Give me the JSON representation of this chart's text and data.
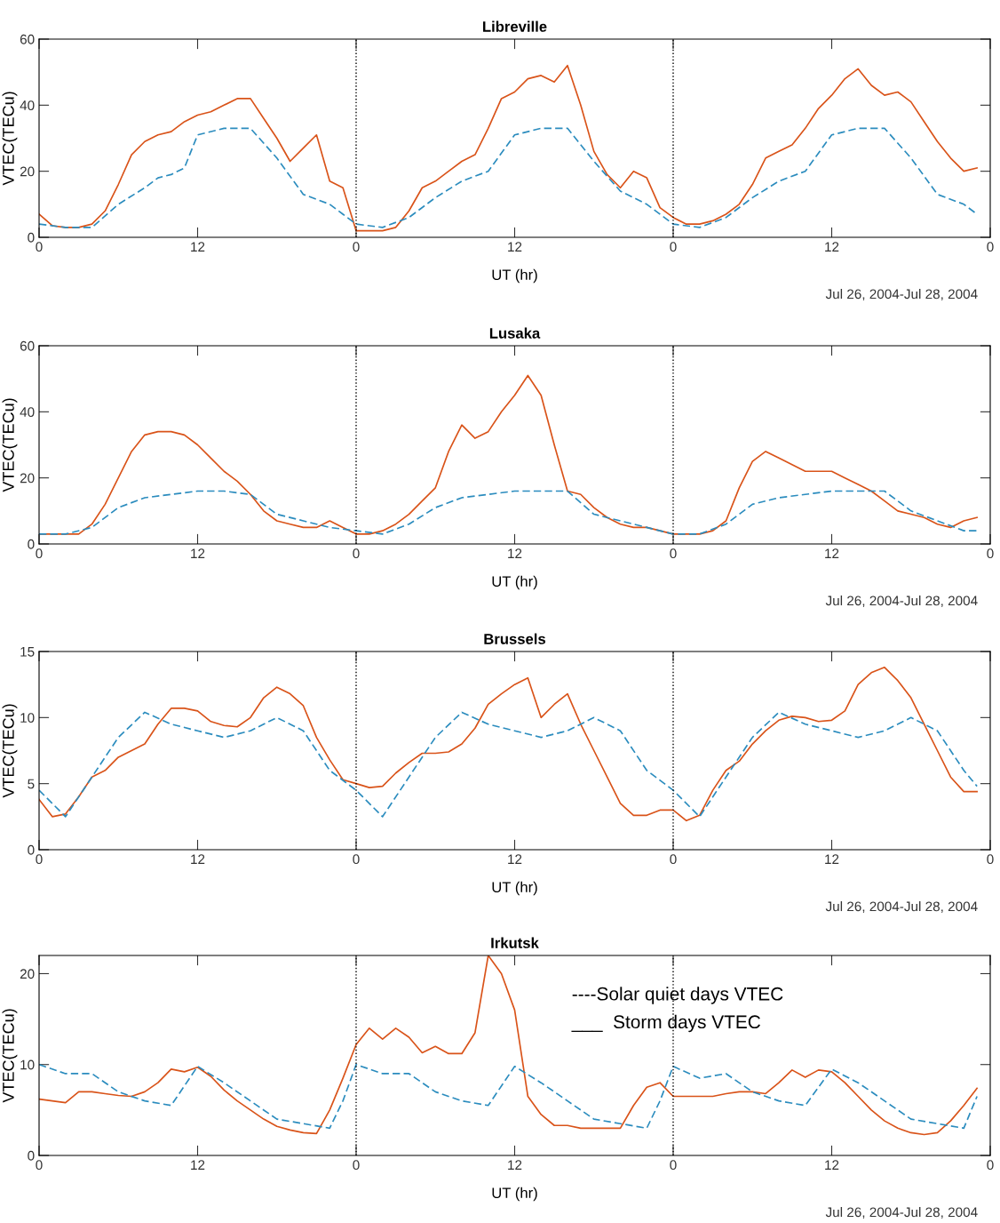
{
  "chart_data": [
    {
      "type": "line",
      "title": "Libreville",
      "xlabel": "UT (hr)",
      "ylabel": "VTEC(TECu)",
      "annotations": [
        "Jul 26, 2004-Jul 28, 2004"
      ],
      "xlim": [
        "2004-07-26T00:00",
        "2004-07-29T00:00"
      ],
      "xticks": [
        {
          "value": "2004-07-26T00:00",
          "label": "0"
        },
        {
          "value": "2004-07-26T12:00",
          "label": "12"
        },
        {
          "value": "2004-07-27T00:00",
          "label": "0"
        },
        {
          "value": "2004-07-27T12:00",
          "label": "12"
        },
        {
          "value": "2004-07-28T00:00",
          "label": "0"
        },
        {
          "value": "2004-07-28T12:00",
          "label": "12"
        },
        {
          "value": "2004-07-29T00:00",
          "label": "0"
        }
      ],
      "ylim": [
        0,
        60
      ],
      "yticks": [
        0,
        20,
        40,
        60
      ],
      "grid": false,
      "ref_lines": [
        {
          "axis": "x",
          "value": "2004-07-27T00:00",
          "color": "#000000",
          "line_style": "dotted"
        },
        {
          "axis": "x",
          "value": "2004-07-28T00:00",
          "color": "#000000",
          "line_style": "dotted"
        }
      ],
      "x": [
        "2004-07-26T00:00",
        "2004-07-26T01:00",
        "2004-07-26T02:00",
        "2004-07-26T03:00",
        "2004-07-26T04:00",
        "2004-07-26T05:00",
        "2004-07-26T06:00",
        "2004-07-26T07:00",
        "2004-07-26T08:00",
        "2004-07-26T09:00",
        "2004-07-26T10:00",
        "2004-07-26T11:00",
        "2004-07-26T12:00",
        "2004-07-26T13:00",
        "2004-07-26T14:00",
        "2004-07-26T15:00",
        "2004-07-26T16:00",
        "2004-07-26T17:00",
        "2004-07-26T18:00",
        "2004-07-26T19:00",
        "2004-07-26T20:00",
        "2004-07-26T21:00",
        "2004-07-26T22:00",
        "2004-07-26T23:00",
        "2004-07-27T00:00",
        "2004-07-27T01:00",
        "2004-07-27T02:00",
        "2004-07-27T03:00",
        "2004-07-27T04:00",
        "2004-07-27T05:00",
        "2004-07-27T06:00",
        "2004-07-27T07:00",
        "2004-07-27T08:00",
        "2004-07-27T09:00",
        "2004-07-27T10:00",
        "2004-07-27T11:00",
        "2004-07-27T12:00",
        "2004-07-27T13:00",
        "2004-07-27T14:00",
        "2004-07-27T15:00",
        "2004-07-27T16:00",
        "2004-07-27T17:00",
        "2004-07-27T18:00",
        "2004-07-27T19:00",
        "2004-07-27T20:00",
        "2004-07-27T21:00",
        "2004-07-27T22:00",
        "2004-07-27T23:00",
        "2004-07-28T00:00",
        "2004-07-28T01:00",
        "2004-07-28T02:00",
        "2004-07-28T03:00",
        "2004-07-28T04:00",
        "2004-07-28T05:00",
        "2004-07-28T06:00",
        "2004-07-28T07:00",
        "2004-07-28T08:00",
        "2004-07-28T09:00",
        "2004-07-28T10:00",
        "2004-07-28T11:00",
        "2004-07-28T12:00",
        "2004-07-28T13:00",
        "2004-07-28T14:00",
        "2004-07-28T15:00",
        "2004-07-28T16:00",
        "2004-07-28T17:00",
        "2004-07-28T18:00",
        "2004-07-28T19:00",
        "2004-07-28T20:00",
        "2004-07-28T21:00",
        "2004-07-28T22:00",
        "2004-07-28T23:00"
      ],
      "series": [
        {
          "color": "#d95319",
          "line_style": "solid",
          "values": [
            7,
            3.5,
            3,
            3,
            4,
            8,
            16,
            25,
            29,
            31,
            32,
            35,
            37,
            38,
            40,
            42,
            42,
            36,
            30,
            23,
            27,
            31,
            17,
            15,
            2,
            2,
            2,
            3,
            8,
            15,
            17,
            20,
            23,
            25,
            33,
            42,
            44,
            48,
            49,
            47,
            52,
            40,
            26,
            19,
            15,
            20,
            18,
            9,
            6,
            4,
            4,
            5,
            7,
            10,
            16,
            24,
            26,
            28,
            33,
            39,
            43,
            48,
            51,
            46,
            43,
            44,
            41,
            35,
            29,
            24,
            20,
            21
          ]
        },
        {
          "color": "#2b8cbe",
          "line_style": "dashed",
          "x": [
            "2004-07-26T00:00",
            "2004-07-26T02:00",
            "2004-07-26T04:00",
            "2004-07-26T06:00",
            "2004-07-26T08:00",
            "2004-07-26T09:00",
            "2004-07-26T10:00",
            "2004-07-26T11:00",
            "2004-07-26T12:00",
            "2004-07-26T14:00",
            "2004-07-26T16:00",
            "2004-07-26T18:00",
            "2004-07-26T20:00",
            "2004-07-26T22:00",
            "2004-07-26T23:00",
            "2004-07-27T00:00",
            "2004-07-27T02:00",
            "2004-07-27T04:00",
            "2004-07-27T06:00",
            "2004-07-27T08:00",
            "2004-07-27T10:00",
            "2004-07-27T12:00",
            "2004-07-27T14:00",
            "2004-07-27T16:00",
            "2004-07-27T18:00",
            "2004-07-27T20:00",
            "2004-07-27T22:00",
            "2004-07-28T00:00",
            "2004-07-28T02:00",
            "2004-07-28T04:00",
            "2004-07-28T06:00",
            "2004-07-28T08:00",
            "2004-07-28T10:00",
            "2004-07-28T12:00",
            "2004-07-28T14:00",
            "2004-07-28T16:00",
            "2004-07-28T18:00",
            "2004-07-28T20:00",
            "2004-07-28T22:00",
            "2004-07-28T23:00"
          ],
          "values": [
            4,
            3,
            3,
            10,
            15,
            18,
            19,
            21,
            31,
            33,
            33,
            24,
            13,
            10,
            7,
            4,
            3,
            6,
            12,
            17,
            20,
            31,
            33,
            33,
            23,
            14,
            10,
            4,
            3,
            6,
            12,
            17,
            20,
            31,
            33,
            33,
            24,
            13,
            10,
            7
          ]
        }
      ]
    },
    {
      "type": "line",
      "title": "Lusaka",
      "xlabel": "UT (hr)",
      "ylabel": "VTEC(TECu)",
      "annotations": [
        "Jul 26, 2004-Jul 28, 2004"
      ],
      "xlim": [
        "2004-07-26T00:00",
        "2004-07-29T00:00"
      ],
      "xticks": [
        {
          "value": "2004-07-26T00:00",
          "label": "0"
        },
        {
          "value": "2004-07-26T12:00",
          "label": "12"
        },
        {
          "value": "2004-07-27T00:00",
          "label": "0"
        },
        {
          "value": "2004-07-27T12:00",
          "label": "12"
        },
        {
          "value": "2004-07-28T00:00",
          "label": "0"
        },
        {
          "value": "2004-07-28T12:00",
          "label": "12"
        },
        {
          "value": "2004-07-29T00:00",
          "label": "0"
        }
      ],
      "ylim": [
        0,
        60
      ],
      "yticks": [
        0,
        20,
        40,
        60
      ],
      "grid": false,
      "ref_lines": [
        {
          "axis": "x",
          "value": "2004-07-27T00:00",
          "color": "#000000",
          "line_style": "dotted"
        },
        {
          "axis": "x",
          "value": "2004-07-28T00:00",
          "color": "#000000",
          "line_style": "dotted"
        }
      ],
      "x": [
        "2004-07-26T00:00",
        "2004-07-26T01:00",
        "2004-07-26T02:00",
        "2004-07-26T03:00",
        "2004-07-26T04:00",
        "2004-07-26T05:00",
        "2004-07-26T06:00",
        "2004-07-26T07:00",
        "2004-07-26T08:00",
        "2004-07-26T09:00",
        "2004-07-26T10:00",
        "2004-07-26T11:00",
        "2004-07-26T12:00",
        "2004-07-26T13:00",
        "2004-07-26T14:00",
        "2004-07-26T15:00",
        "2004-07-26T16:00",
        "2004-07-26T17:00",
        "2004-07-26T18:00",
        "2004-07-26T19:00",
        "2004-07-26T20:00",
        "2004-07-26T21:00",
        "2004-07-26T22:00",
        "2004-07-26T23:00",
        "2004-07-27T00:00",
        "2004-07-27T01:00",
        "2004-07-27T02:00",
        "2004-07-27T03:00",
        "2004-07-27T04:00",
        "2004-07-27T05:00",
        "2004-07-27T06:00",
        "2004-07-27T07:00",
        "2004-07-27T08:00",
        "2004-07-27T09:00",
        "2004-07-27T10:00",
        "2004-07-27T11:00",
        "2004-07-27T12:00",
        "2004-07-27T13:00",
        "2004-07-27T14:00",
        "2004-07-27T15:00",
        "2004-07-27T16:00",
        "2004-07-27T17:00",
        "2004-07-27T18:00",
        "2004-07-27T19:00",
        "2004-07-27T20:00",
        "2004-07-27T21:00",
        "2004-07-27T22:00",
        "2004-07-27T23:00",
        "2004-07-28T00:00",
        "2004-07-28T01:00",
        "2004-07-28T02:00",
        "2004-07-28T03:00",
        "2004-07-28T04:00",
        "2004-07-28T05:00",
        "2004-07-28T06:00",
        "2004-07-28T07:00",
        "2004-07-28T08:00",
        "2004-07-28T09:00",
        "2004-07-28T10:00",
        "2004-07-28T11:00",
        "2004-07-28T12:00",
        "2004-07-28T13:00",
        "2004-07-28T14:00",
        "2004-07-28T15:00",
        "2004-07-28T16:00",
        "2004-07-28T17:00",
        "2004-07-28T18:00",
        "2004-07-28T19:00",
        "2004-07-28T20:00",
        "2004-07-28T21:00",
        "2004-07-28T22:00",
        "2004-07-28T23:00"
      ],
      "series": [
        {
          "color": "#d95319",
          "line_style": "solid",
          "values": [
            3,
            3,
            3,
            3,
            6,
            12,
            20,
            28,
            33,
            34,
            34,
            33,
            30,
            26,
            22,
            19,
            15,
            10,
            7,
            6,
            5,
            5,
            7,
            5,
            3,
            3,
            4,
            6,
            9,
            13,
            17,
            28,
            36,
            32,
            34,
            40,
            45,
            51,
            45,
            30,
            16,
            15,
            11,
            8,
            6,
            5,
            5,
            4,
            3,
            3,
            3,
            4,
            7,
            17,
            25,
            28,
            26,
            24,
            22,
            22,
            22,
            20,
            18,
            16,
            13,
            10,
            9,
            8,
            6,
            5,
            7,
            8
          ]
        },
        {
          "color": "#2b8cbe",
          "line_style": "dashed",
          "x": [
            "2004-07-26T00:00",
            "2004-07-26T02:00",
            "2004-07-26T04:00",
            "2004-07-26T06:00",
            "2004-07-26T08:00",
            "2004-07-26T10:00",
            "2004-07-26T12:00",
            "2004-07-26T14:00",
            "2004-07-26T16:00",
            "2004-07-26T18:00",
            "2004-07-26T20:00",
            "2004-07-26T22:00",
            "2004-07-27T00:00",
            "2004-07-27T02:00",
            "2004-07-27T04:00",
            "2004-07-27T06:00",
            "2004-07-27T08:00",
            "2004-07-27T10:00",
            "2004-07-27T12:00",
            "2004-07-27T14:00",
            "2004-07-27T16:00",
            "2004-07-27T18:00",
            "2004-07-27T20:00",
            "2004-07-27T22:00",
            "2004-07-28T00:00",
            "2004-07-28T02:00",
            "2004-07-28T04:00",
            "2004-07-28T06:00",
            "2004-07-28T08:00",
            "2004-07-28T10:00",
            "2004-07-28T12:00",
            "2004-07-28T14:00",
            "2004-07-28T16:00",
            "2004-07-28T18:00",
            "2004-07-28T20:00",
            "2004-07-28T22:00",
            "2004-07-28T23:00"
          ],
          "values": [
            3,
            3,
            5,
            11,
            14,
            15,
            16,
            16,
            15,
            9,
            7,
            5,
            4,
            3,
            6,
            11,
            14,
            15,
            16,
            16,
            16,
            9,
            7,
            5,
            3,
            3,
            6,
            12,
            14,
            15,
            16,
            16,
            16,
            10,
            7,
            4,
            4
          ]
        }
      ]
    },
    {
      "type": "line",
      "title": "Brussels",
      "xlabel": "UT (hr)",
      "ylabel": "VTEC(TECu)",
      "annotations": [
        "Jul 26, 2004-Jul 28, 2004"
      ],
      "xlim": [
        "2004-07-26T00:00",
        "2004-07-29T00:00"
      ],
      "xticks": [
        {
          "value": "2004-07-26T00:00",
          "label": "0"
        },
        {
          "value": "2004-07-26T12:00",
          "label": "12"
        },
        {
          "value": "2004-07-27T00:00",
          "label": "0"
        },
        {
          "value": "2004-07-27T12:00",
          "label": "12"
        },
        {
          "value": "2004-07-28T00:00",
          "label": "0"
        },
        {
          "value": "2004-07-28T12:00",
          "label": "12"
        },
        {
          "value": "2004-07-29T00:00",
          "label": "0"
        }
      ],
      "ylim": [
        0,
        15
      ],
      "yticks": [
        0,
        5,
        10,
        15
      ],
      "grid": false,
      "ref_lines": [
        {
          "axis": "x",
          "value": "2004-07-27T00:00",
          "color": "#000000",
          "line_style": "dotted"
        },
        {
          "axis": "x",
          "value": "2004-07-28T00:00",
          "color": "#000000",
          "line_style": "dotted"
        }
      ],
      "x": [
        "2004-07-26T00:00",
        "2004-07-26T01:00",
        "2004-07-26T02:00",
        "2004-07-26T03:00",
        "2004-07-26T04:00",
        "2004-07-26T05:00",
        "2004-07-26T06:00",
        "2004-07-26T07:00",
        "2004-07-26T08:00",
        "2004-07-26T09:00",
        "2004-07-26T10:00",
        "2004-07-26T11:00",
        "2004-07-26T12:00",
        "2004-07-26T13:00",
        "2004-07-26T14:00",
        "2004-07-26T15:00",
        "2004-07-26T16:00",
        "2004-07-26T17:00",
        "2004-07-26T18:00",
        "2004-07-26T19:00",
        "2004-07-26T20:00",
        "2004-07-26T21:00",
        "2004-07-26T22:00",
        "2004-07-26T23:00",
        "2004-07-27T00:00",
        "2004-07-27T01:00",
        "2004-07-27T02:00",
        "2004-07-27T03:00",
        "2004-07-27T04:00",
        "2004-07-27T05:00",
        "2004-07-27T06:00",
        "2004-07-27T07:00",
        "2004-07-27T08:00",
        "2004-07-27T09:00",
        "2004-07-27T10:00",
        "2004-07-27T11:00",
        "2004-07-27T12:00",
        "2004-07-27T13:00",
        "2004-07-27T14:00",
        "2004-07-27T15:00",
        "2004-07-27T16:00",
        "2004-07-27T17:00",
        "2004-07-27T18:00",
        "2004-07-27T19:00",
        "2004-07-27T20:00",
        "2004-07-27T21:00",
        "2004-07-27T22:00",
        "2004-07-27T23:00",
        "2004-07-28T00:00",
        "2004-07-28T01:00",
        "2004-07-28T02:00",
        "2004-07-28T03:00",
        "2004-07-28T04:00",
        "2004-07-28T05:00",
        "2004-07-28T06:00",
        "2004-07-28T07:00",
        "2004-07-28T08:00",
        "2004-07-28T09:00",
        "2004-07-28T10:00",
        "2004-07-28T11:00",
        "2004-07-28T12:00",
        "2004-07-28T13:00",
        "2004-07-28T14:00",
        "2004-07-28T15:00",
        "2004-07-28T16:00",
        "2004-07-28T17:00",
        "2004-07-28T18:00",
        "2004-07-28T19:00",
        "2004-07-28T20:00",
        "2004-07-28T21:00",
        "2004-07-28T22:00",
        "2004-07-28T23:00"
      ],
      "series": [
        {
          "color": "#d95319",
          "line_style": "solid",
          "values": [
            3.8,
            2.5,
            2.7,
            4,
            5.5,
            6,
            7,
            7.5,
            8,
            9.5,
            10.7,
            10.7,
            10.5,
            9.7,
            9.4,
            9.3,
            10,
            11.5,
            12.3,
            11.8,
            10.9,
            8.5,
            6.8,
            5.3,
            5,
            4.7,
            4.8,
            5.8,
            6.6,
            7.3,
            7.3,
            7.4,
            8,
            9.2,
            11,
            11.8,
            12.5,
            13,
            10,
            11,
            11.8,
            9.5,
            7.5,
            5.5,
            3.5,
            2.6,
            2.6,
            3,
            3,
            2.2,
            2.6,
            4.5,
            6,
            6.7,
            8,
            9,
            9.8,
            10.1,
            10,
            9.7,
            9.8,
            10.5,
            12.5,
            13.4,
            13.8,
            12.8,
            11.5,
            9.5,
            7.5,
            5.5,
            4.4,
            4.4
          ]
        },
        {
          "color": "#2b8cbe",
          "line_style": "dashed",
          "x": [
            "2004-07-26T00:00",
            "2004-07-26T02:00",
            "2004-07-26T04:00",
            "2004-07-26T06:00",
            "2004-07-26T08:00",
            "2004-07-26T10:00",
            "2004-07-26T12:00",
            "2004-07-26T14:00",
            "2004-07-26T16:00",
            "2004-07-26T18:00",
            "2004-07-26T20:00",
            "2004-07-26T22:00",
            "2004-07-27T00:00",
            "2004-07-27T02:00",
            "2004-07-27T04:00",
            "2004-07-27T06:00",
            "2004-07-27T08:00",
            "2004-07-27T10:00",
            "2004-07-27T12:00",
            "2004-07-27T14:00",
            "2004-07-27T16:00",
            "2004-07-27T18:00",
            "2004-07-27T20:00",
            "2004-07-27T22:00",
            "2004-07-28T00:00",
            "2004-07-28T02:00",
            "2004-07-28T04:00",
            "2004-07-28T06:00",
            "2004-07-28T08:00",
            "2004-07-28T10:00",
            "2004-07-28T12:00",
            "2004-07-28T14:00",
            "2004-07-28T16:00",
            "2004-07-28T18:00",
            "2004-07-28T20:00",
            "2004-07-28T22:00",
            "2004-07-28T23:00"
          ],
          "values": [
            4.5,
            2.5,
            5.5,
            8.5,
            10.4,
            9.5,
            9,
            8.5,
            9,
            10,
            9,
            6,
            4.5,
            2.5,
            5.5,
            8.5,
            10.4,
            9.5,
            9,
            8.5,
            9,
            10,
            9,
            6,
            4.5,
            2.5,
            5.5,
            8.5,
            10.4,
            9.5,
            9,
            8.5,
            9,
            10,
            9,
            6,
            4.8
          ]
        }
      ]
    },
    {
      "type": "line",
      "title": "Irkutsk",
      "xlabel": "UT (hr)",
      "ylabel": "VTEC(TECu)",
      "annotations": [
        "Jul 26, 2004-Jul 28, 2004",
        "----Solar quiet days VTEC",
        "___  Storm days VTEC"
      ],
      "xlim": [
        "2004-07-26T00:00",
        "2004-07-29T00:00"
      ],
      "xticks": [
        {
          "value": "2004-07-26T00:00",
          "label": "0"
        },
        {
          "value": "2004-07-26T12:00",
          "label": "12"
        },
        {
          "value": "2004-07-27T00:00",
          "label": "0"
        },
        {
          "value": "2004-07-27T12:00",
          "label": "12"
        },
        {
          "value": "2004-07-28T00:00",
          "label": "0"
        },
        {
          "value": "2004-07-28T12:00",
          "label": "12"
        },
        {
          "value": "2004-07-29T00:00",
          "label": "0"
        }
      ],
      "ylim": [
        0,
        22
      ],
      "yticks": [
        0,
        10,
        20
      ],
      "grid": false,
      "ref_lines": [
        {
          "axis": "x",
          "value": "2004-07-27T00:00",
          "color": "#000000",
          "line_style": "dotted"
        },
        {
          "axis": "x",
          "value": "2004-07-28T00:00",
          "color": "#000000",
          "line_style": "dotted"
        }
      ],
      "x": [
        "2004-07-26T00:00",
        "2004-07-26T01:00",
        "2004-07-26T02:00",
        "2004-07-26T03:00",
        "2004-07-26T04:00",
        "2004-07-26T05:00",
        "2004-07-26T06:00",
        "2004-07-26T07:00",
        "2004-07-26T08:00",
        "2004-07-26T09:00",
        "2004-07-26T10:00",
        "2004-07-26T11:00",
        "2004-07-26T12:00",
        "2004-07-26T13:00",
        "2004-07-26T14:00",
        "2004-07-26T15:00",
        "2004-07-26T16:00",
        "2004-07-26T17:00",
        "2004-07-26T18:00",
        "2004-07-26T19:00",
        "2004-07-26T20:00",
        "2004-07-26T21:00",
        "2004-07-26T22:00",
        "2004-07-26T23:00",
        "2004-07-27T00:00",
        "2004-07-27T01:00",
        "2004-07-27T02:00",
        "2004-07-27T03:00",
        "2004-07-27T04:00",
        "2004-07-27T05:00",
        "2004-07-27T06:00",
        "2004-07-27T07:00",
        "2004-07-27T08:00",
        "2004-07-27T09:00",
        "2004-07-27T10:00",
        "2004-07-27T11:00",
        "2004-07-27T12:00",
        "2004-07-27T13:00",
        "2004-07-27T14:00",
        "2004-07-27T15:00",
        "2004-07-27T16:00",
        "2004-07-27T17:00",
        "2004-07-27T18:00",
        "2004-07-27T19:00",
        "2004-07-27T20:00",
        "2004-07-27T21:00",
        "2004-07-27T22:00",
        "2004-07-27T23:00",
        "2004-07-28T00:00",
        "2004-07-28T01:00",
        "2004-07-28T02:00",
        "2004-07-28T03:00",
        "2004-07-28T04:00",
        "2004-07-28T05:00",
        "2004-07-28T06:00",
        "2004-07-28T07:00",
        "2004-07-28T08:00",
        "2004-07-28T09:00",
        "2004-07-28T10:00",
        "2004-07-28T11:00",
        "2004-07-28T12:00",
        "2004-07-28T13:00",
        "2004-07-28T14:00",
        "2004-07-28T15:00",
        "2004-07-28T16:00",
        "2004-07-28T17:00",
        "2004-07-28T18:00",
        "2004-07-28T19:00",
        "2004-07-28T20:00",
        "2004-07-28T21:00",
        "2004-07-28T22:00",
        "2004-07-28T23:00"
      ],
      "series": [
        {
          "color": "#d95319",
          "line_style": "solid",
          "values": [
            6.2,
            6,
            5.8,
            7,
            7,
            6.8,
            6.6,
            6.5,
            7,
            8,
            9.5,
            9.2,
            9.7,
            8.7,
            7.2,
            6,
            5,
            4,
            3.2,
            2.8,
            2.5,
            2.4,
            5,
            8.5,
            12.2,
            14,
            12.8,
            14,
            13,
            11.3,
            12,
            11.2,
            11.2,
            13.5,
            22,
            20,
            16,
            6.5,
            4.5,
            3.3,
            3.3,
            3,
            3,
            3,
            3,
            5.5,
            7.5,
            8,
            6.5,
            6.5,
            6.5,
            6.5,
            6.8,
            7,
            7,
            6.8,
            8,
            9.4,
            8.6,
            9.4,
            9.2,
            8,
            6.5,
            5,
            3.8,
            3,
            2.5,
            2.3,
            2.5,
            3.8,
            5.5,
            7.4
          ]
        },
        {
          "color": "#2b8cbe",
          "line_style": "dashed",
          "x": [
            "2004-07-26T00:00",
            "2004-07-26T02:00",
            "2004-07-26T04:00",
            "2004-07-26T06:00",
            "2004-07-26T08:00",
            "2004-07-26T10:00",
            "2004-07-26T12:00",
            "2004-07-26T14:00",
            "2004-07-26T16:00",
            "2004-07-26T18:00",
            "2004-07-26T20:00",
            "2004-07-26T22:00",
            "2004-07-26T23:00",
            "2004-07-27T00:00",
            "2004-07-27T02:00",
            "2004-07-27T04:00",
            "2004-07-27T06:00",
            "2004-07-27T08:00",
            "2004-07-27T10:00",
            "2004-07-27T12:00",
            "2004-07-27T14:00",
            "2004-07-27T16:00",
            "2004-07-27T18:00",
            "2004-07-27T20:00",
            "2004-07-27T22:00",
            "2004-07-27T23:00",
            "2004-07-28T00:00",
            "2004-07-28T02:00",
            "2004-07-28T04:00",
            "2004-07-28T06:00",
            "2004-07-28T08:00",
            "2004-07-28T10:00",
            "2004-07-28T12:00",
            "2004-07-28T14:00",
            "2004-07-28T16:00",
            "2004-07-28T18:00",
            "2004-07-28T20:00",
            "2004-07-28T22:00",
            "2004-07-28T23:00"
          ],
          "values": [
            10,
            9,
            9,
            7,
            6,
            5.5,
            9.8,
            8,
            6,
            4,
            3.5,
            3,
            6,
            10,
            9,
            9,
            7,
            6,
            5.5,
            9.8,
            8,
            6,
            4,
            3.5,
            3,
            6,
            9.8,
            8.5,
            9,
            7,
            6,
            5.5,
            9.5,
            8,
            6,
            4,
            3.5,
            3,
            6.5
          ]
        }
      ]
    }
  ]
}
